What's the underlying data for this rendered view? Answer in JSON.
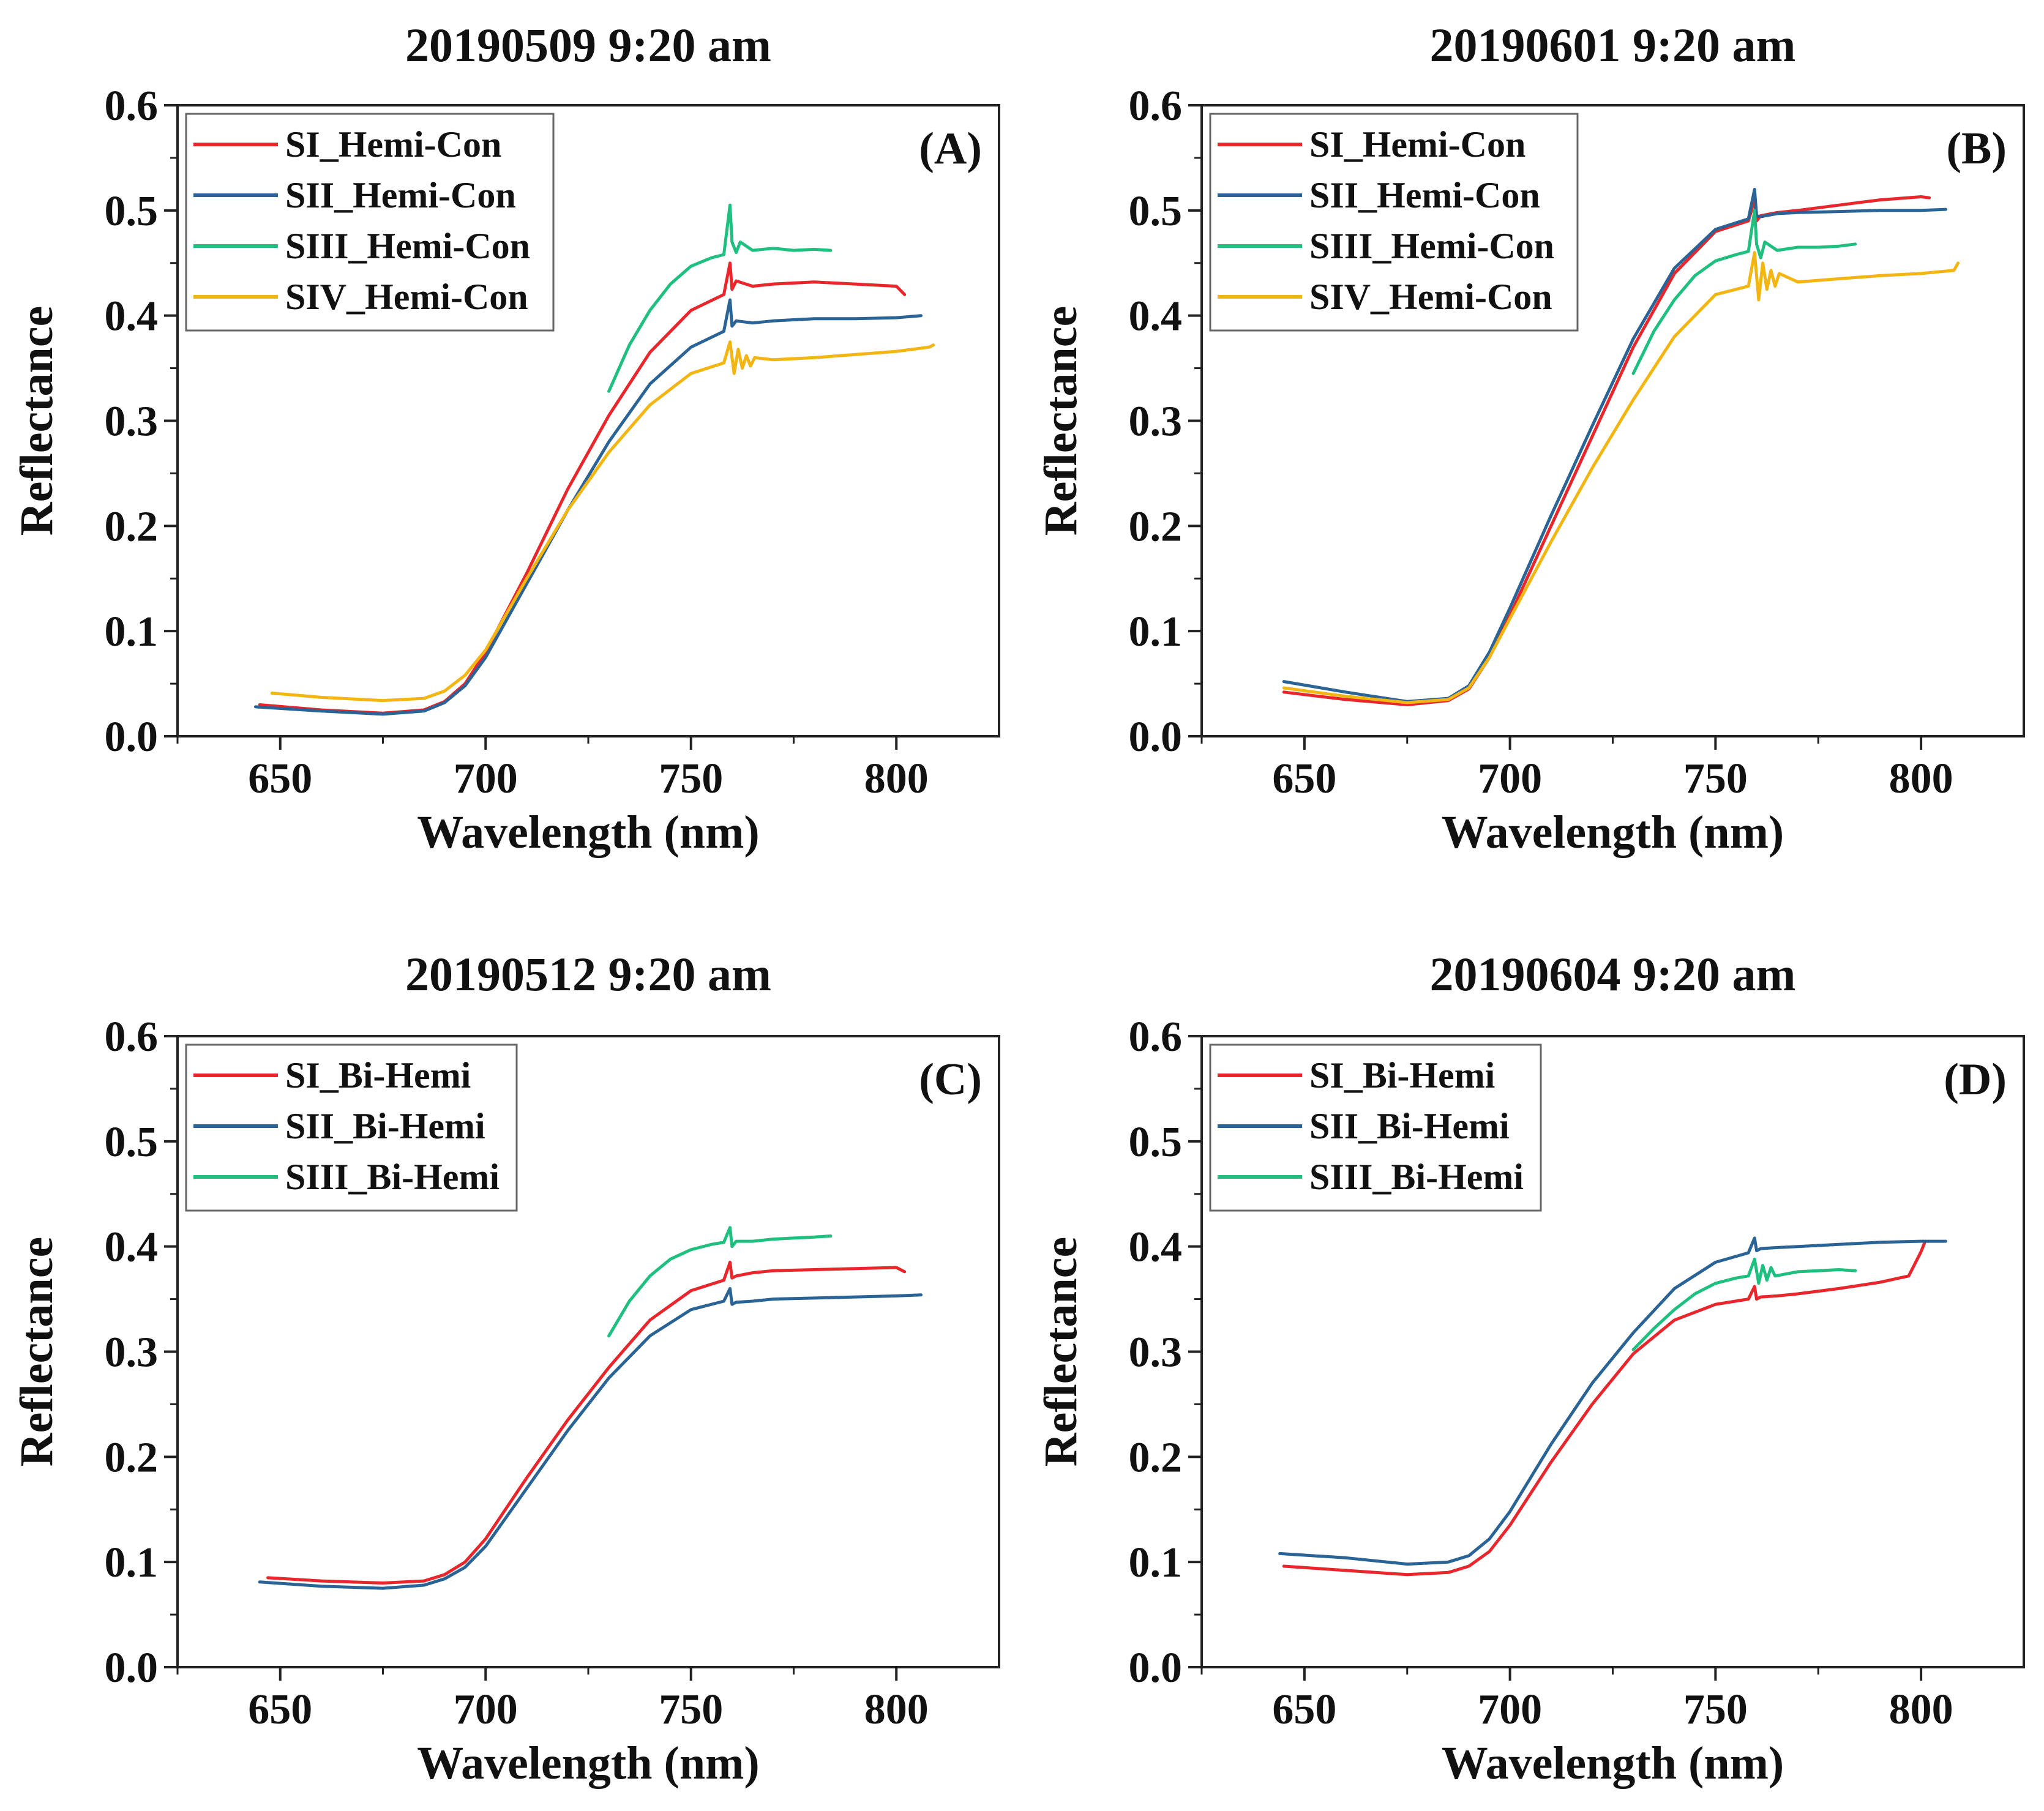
{
  "chart_data": [
    {
      "id": "A",
      "type": "line",
      "title": "20190509 9:20 am",
      "panel_label": "(A)",
      "xlabel": "Wavelength (nm)",
      "ylabel": "Reflectance",
      "xlim": [
        625,
        825
      ],
      "ylim": [
        0,
        0.6
      ],
      "xticks": [
        650,
        700,
        750,
        800
      ],
      "yticks": [
        0.0,
        0.1,
        0.2,
        0.3,
        0.4,
        0.5,
        0.6
      ],
      "xtick_labels": [
        "650",
        "700",
        "750",
        "800"
      ],
      "ytick_labels": [
        "0.0",
        "0.1",
        "0.2",
        "0.3",
        "0.4",
        "0.5",
        "0.6"
      ],
      "legend_position": "top-left",
      "series": [
        {
          "name": "SI_Hemi-Con",
          "color": "#e8262b",
          "x": [
            645,
            660,
            675,
            685,
            690,
            695,
            700,
            710,
            720,
            730,
            740,
            750,
            758,
            759.5,
            760,
            761,
            765,
            770,
            780,
            790,
            800,
            802
          ],
          "y": [
            0.03,
            0.025,
            0.022,
            0.025,
            0.033,
            0.05,
            0.08,
            0.155,
            0.235,
            0.305,
            0.365,
            0.405,
            0.42,
            0.45,
            0.425,
            0.433,
            0.428,
            0.43,
            0.432,
            0.43,
            0.428,
            0.42
          ]
        },
        {
          "name": "SII_Hemi-Con",
          "color": "#2a6496",
          "x": [
            644,
            660,
            675,
            685,
            690,
            695,
            700,
            710,
            720,
            730,
            740,
            750,
            758,
            759.5,
            760,
            761,
            765,
            770,
            780,
            790,
            800,
            806
          ],
          "y": [
            0.028,
            0.024,
            0.021,
            0.024,
            0.032,
            0.048,
            0.075,
            0.145,
            0.215,
            0.28,
            0.335,
            0.37,
            0.385,
            0.415,
            0.39,
            0.395,
            0.393,
            0.395,
            0.397,
            0.397,
            0.398,
            0.4
          ]
        },
        {
          "name": "SIII_Hemi-Con",
          "color": "#1fbf7f",
          "x": [
            730,
            735,
            740,
            745,
            750,
            755,
            758,
            759.5,
            760,
            761,
            762,
            765,
            770,
            775,
            780,
            784
          ],
          "y": [
            0.328,
            0.372,
            0.405,
            0.43,
            0.447,
            0.455,
            0.458,
            0.505,
            0.47,
            0.46,
            0.47,
            0.462,
            0.464,
            0.462,
            0.463,
            0.462
          ]
        },
        {
          "name": "SIV_Hemi-Con",
          "color": "#f2b511",
          "x": [
            648,
            660,
            675,
            685,
            690,
            695,
            700,
            710,
            720,
            730,
            740,
            750,
            758,
            759.5,
            760.5,
            761.5,
            762.5,
            763.5,
            764.5,
            765.5,
            770,
            780,
            790,
            800,
            808,
            809
          ],
          "y": [
            0.041,
            0.037,
            0.034,
            0.036,
            0.043,
            0.058,
            0.082,
            0.15,
            0.215,
            0.27,
            0.315,
            0.345,
            0.355,
            0.375,
            0.345,
            0.368,
            0.35,
            0.362,
            0.352,
            0.36,
            0.358,
            0.36,
            0.363,
            0.366,
            0.37,
            0.372
          ]
        }
      ]
    },
    {
      "id": "B",
      "type": "line",
      "title": "20190601 9:20 am",
      "panel_label": "(B)",
      "xlabel": "Wavelength (nm)",
      "ylabel": "Reflectance",
      "xlim": [
        625,
        825
      ],
      "ylim": [
        0,
        0.6
      ],
      "xticks": [
        650,
        700,
        750,
        800
      ],
      "yticks": [
        0.0,
        0.1,
        0.2,
        0.3,
        0.4,
        0.5,
        0.6
      ],
      "xtick_labels": [
        "650",
        "700",
        "750",
        "800"
      ],
      "ytick_labels": [
        "0.0",
        "0.1",
        "0.2",
        "0.3",
        "0.4",
        "0.5",
        "0.6"
      ],
      "legend_position": "top-left",
      "series": [
        {
          "name": "SI_Hemi-Con",
          "color": "#e8262b",
          "x": [
            645,
            660,
            675,
            685,
            690,
            695,
            700,
            710,
            720,
            730,
            740,
            750,
            758,
            759.5,
            760,
            761,
            765,
            770,
            780,
            790,
            800,
            802
          ],
          "y": [
            0.042,
            0.035,
            0.03,
            0.034,
            0.045,
            0.075,
            0.115,
            0.2,
            0.285,
            0.37,
            0.44,
            0.48,
            0.49,
            0.51,
            0.49,
            0.495,
            0.498,
            0.5,
            0.505,
            0.51,
            0.513,
            0.512
          ]
        },
        {
          "name": "SII_Hemi-Con",
          "color": "#2a6496",
          "x": [
            645,
            660,
            675,
            685,
            690,
            695,
            700,
            710,
            720,
            730,
            740,
            750,
            758,
            759.5,
            760,
            761,
            765,
            770,
            780,
            790,
            800,
            806
          ],
          "y": [
            0.052,
            0.042,
            0.033,
            0.036,
            0.048,
            0.08,
            0.122,
            0.21,
            0.295,
            0.378,
            0.445,
            0.482,
            0.492,
            0.52,
            0.495,
            0.494,
            0.497,
            0.498,
            0.499,
            0.5,
            0.5,
            0.501
          ]
        },
        {
          "name": "SIII_Hemi-Con",
          "color": "#1fbf7f",
          "x": [
            730,
            735,
            740,
            745,
            750,
            755,
            758,
            759.5,
            760,
            761,
            762,
            765,
            770,
            775,
            780,
            784
          ],
          "y": [
            0.345,
            0.385,
            0.415,
            0.438,
            0.452,
            0.458,
            0.461,
            0.5,
            0.468,
            0.455,
            0.47,
            0.462,
            0.465,
            0.465,
            0.466,
            0.468
          ]
        },
        {
          "name": "SIV_Hemi-Con",
          "color": "#f2b511",
          "x": [
            645,
            660,
            675,
            685,
            690,
            695,
            700,
            710,
            720,
            730,
            740,
            750,
            758,
            759.5,
            760.5,
            761.5,
            762.5,
            763.5,
            764.5,
            765.5,
            770,
            780,
            790,
            800,
            808,
            809
          ],
          "y": [
            0.046,
            0.038,
            0.032,
            0.035,
            0.046,
            0.075,
            0.112,
            0.185,
            0.255,
            0.32,
            0.38,
            0.42,
            0.428,
            0.46,
            0.415,
            0.45,
            0.425,
            0.443,
            0.428,
            0.44,
            0.432,
            0.435,
            0.438,
            0.44,
            0.443,
            0.45
          ]
        }
      ]
    },
    {
      "id": "C",
      "type": "line",
      "title": "20190512 9:20 am",
      "panel_label": "(C)",
      "xlabel": "Wavelength (nm)",
      "ylabel": "Reflectance",
      "xlim": [
        625,
        825
      ],
      "ylim": [
        0,
        0.6
      ],
      "xticks": [
        650,
        700,
        750,
        800
      ],
      "yticks": [
        0.0,
        0.1,
        0.2,
        0.3,
        0.4,
        0.5,
        0.6
      ],
      "xtick_labels": [
        "650",
        "700",
        "750",
        "800"
      ],
      "ytick_labels": [
        "0.0",
        "0.1",
        "0.2",
        "0.3",
        "0.4",
        "0.5",
        "0.6"
      ],
      "legend_position": "top-left",
      "series": [
        {
          "name": "SI_Bi-Hemi",
          "color": "#e8262b",
          "x": [
            647,
            660,
            675,
            685,
            690,
            695,
            700,
            710,
            720,
            730,
            740,
            750,
            758,
            759.5,
            760,
            761,
            765,
            770,
            780,
            790,
            800,
            802
          ],
          "y": [
            0.085,
            0.082,
            0.08,
            0.082,
            0.088,
            0.1,
            0.122,
            0.18,
            0.235,
            0.285,
            0.33,
            0.358,
            0.368,
            0.385,
            0.37,
            0.372,
            0.375,
            0.377,
            0.378,
            0.379,
            0.38,
            0.376
          ]
        },
        {
          "name": "SII_Bi-Hemi",
          "color": "#2a6496",
          "x": [
            645,
            660,
            675,
            685,
            690,
            695,
            700,
            710,
            720,
            730,
            740,
            750,
            758,
            759.5,
            760,
            761,
            765,
            770,
            780,
            790,
            800,
            806
          ],
          "y": [
            0.081,
            0.077,
            0.075,
            0.078,
            0.084,
            0.095,
            0.115,
            0.17,
            0.225,
            0.275,
            0.315,
            0.34,
            0.348,
            0.36,
            0.345,
            0.347,
            0.348,
            0.35,
            0.351,
            0.352,
            0.353,
            0.354
          ]
        },
        {
          "name": "SIII_Bi-Hemi",
          "color": "#1fbf7f",
          "x": [
            730,
            735,
            740,
            745,
            750,
            755,
            758,
            759.5,
            760,
            761,
            765,
            770,
            775,
            780,
            784
          ],
          "y": [
            0.315,
            0.348,
            0.372,
            0.388,
            0.397,
            0.402,
            0.404,
            0.418,
            0.4,
            0.405,
            0.405,
            0.407,
            0.408,
            0.409,
            0.41
          ]
        }
      ]
    },
    {
      "id": "D",
      "type": "line",
      "title": "20190604 9:20 am",
      "panel_label": "(D)",
      "xlabel": "Wavelength (nm)",
      "ylabel": "Reflectance",
      "xlim": [
        625,
        825
      ],
      "ylim": [
        0,
        0.6
      ],
      "xticks": [
        650,
        700,
        750,
        800
      ],
      "yticks": [
        0.0,
        0.1,
        0.2,
        0.3,
        0.4,
        0.5,
        0.6
      ],
      "xtick_labels": [
        "650",
        "700",
        "750",
        "800"
      ],
      "ytick_labels": [
        "0.0",
        "0.1",
        "0.2",
        "0.3",
        "0.4",
        "0.5",
        "0.6"
      ],
      "legend_position": "top-left",
      "series": [
        {
          "name": "SI_Bi-Hemi",
          "color": "#e8262b",
          "x": [
            645,
            660,
            675,
            685,
            690,
            695,
            700,
            710,
            720,
            730,
            740,
            750,
            758,
            759.5,
            760,
            761,
            765,
            770,
            780,
            790,
            797,
            800,
            801
          ],
          "y": [
            0.096,
            0.092,
            0.088,
            0.09,
            0.096,
            0.11,
            0.135,
            0.195,
            0.25,
            0.298,
            0.33,
            0.345,
            0.35,
            0.362,
            0.35,
            0.352,
            0.353,
            0.355,
            0.36,
            0.366,
            0.372,
            0.395,
            0.405
          ]
        },
        {
          "name": "SII_Bi-Hemi",
          "color": "#2a6496",
          "x": [
            644,
            660,
            675,
            685,
            690,
            695,
            700,
            710,
            720,
            730,
            740,
            750,
            758,
            759.5,
            760,
            761,
            765,
            770,
            780,
            790,
            800,
            806
          ],
          "y": [
            0.108,
            0.104,
            0.098,
            0.1,
            0.106,
            0.122,
            0.148,
            0.212,
            0.27,
            0.318,
            0.36,
            0.385,
            0.394,
            0.408,
            0.396,
            0.398,
            0.399,
            0.4,
            0.402,
            0.404,
            0.405,
            0.405
          ]
        },
        {
          "name": "SIII_Bi-Hemi",
          "color": "#1fbf7f",
          "x": [
            730,
            735,
            740,
            745,
            750,
            755,
            758,
            759.5,
            760.5,
            761.5,
            762.5,
            763.5,
            764.5,
            770,
            775,
            780,
            784
          ],
          "y": [
            0.302,
            0.322,
            0.34,
            0.355,
            0.365,
            0.37,
            0.372,
            0.388,
            0.365,
            0.382,
            0.368,
            0.38,
            0.372,
            0.376,
            0.377,
            0.378,
            0.377
          ]
        }
      ]
    }
  ]
}
